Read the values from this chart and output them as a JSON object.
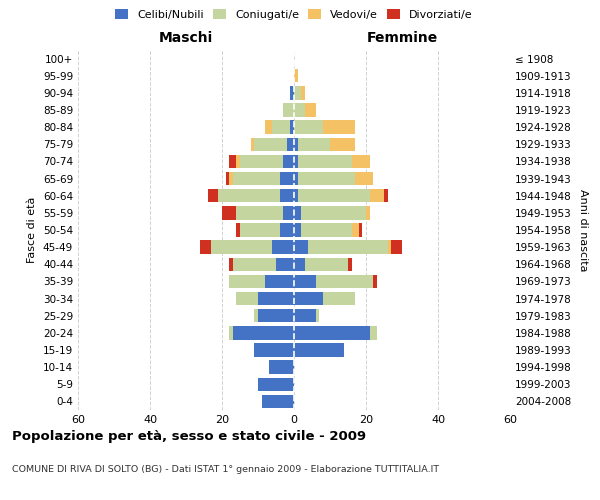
{
  "age_groups": [
    "0-4",
    "5-9",
    "10-14",
    "15-19",
    "20-24",
    "25-29",
    "30-34",
    "35-39",
    "40-44",
    "45-49",
    "50-54",
    "55-59",
    "60-64",
    "65-69",
    "70-74",
    "75-79",
    "80-84",
    "85-89",
    "90-94",
    "95-99",
    "100+"
  ],
  "birth_years": [
    "2004-2008",
    "1999-2003",
    "1994-1998",
    "1989-1993",
    "1984-1988",
    "1979-1983",
    "1974-1978",
    "1969-1973",
    "1964-1968",
    "1959-1963",
    "1954-1958",
    "1949-1953",
    "1944-1948",
    "1939-1943",
    "1934-1938",
    "1929-1933",
    "1924-1928",
    "1919-1923",
    "1914-1918",
    "1909-1913",
    "≤ 1908"
  ],
  "colors": {
    "celibi": "#4472C4",
    "coniugati": "#C5D5A0",
    "vedovi": "#F5C165",
    "divorziati": "#D03020"
  },
  "maschi": {
    "celibi": [
      9,
      10,
      7,
      11,
      17,
      10,
      10,
      8,
      5,
      6,
      4,
      3,
      4,
      4,
      3,
      2,
      1,
      0,
      1,
      0,
      0
    ],
    "coniugati": [
      0,
      0,
      0,
      0,
      1,
      1,
      6,
      10,
      12,
      17,
      11,
      13,
      17,
      13,
      12,
      9,
      5,
      3,
      0,
      0,
      0
    ],
    "vedovi": [
      0,
      0,
      0,
      0,
      0,
      0,
      0,
      0,
      0,
      0,
      0,
      0,
      0,
      1,
      1,
      1,
      2,
      0,
      0,
      0,
      0
    ],
    "divorziati": [
      0,
      0,
      0,
      0,
      0,
      0,
      0,
      0,
      1,
      3,
      1,
      4,
      3,
      1,
      2,
      0,
      0,
      0,
      0,
      0,
      0
    ]
  },
  "femmine": {
    "celibi": [
      0,
      0,
      0,
      14,
      21,
      6,
      8,
      6,
      3,
      4,
      2,
      2,
      1,
      1,
      1,
      1,
      0,
      0,
      0,
      0,
      0
    ],
    "coniugati": [
      0,
      0,
      0,
      0,
      2,
      1,
      9,
      16,
      12,
      22,
      14,
      18,
      20,
      16,
      15,
      9,
      8,
      3,
      2,
      0,
      0
    ],
    "vedovi": [
      0,
      0,
      0,
      0,
      0,
      0,
      0,
      0,
      0,
      1,
      2,
      1,
      4,
      5,
      5,
      7,
      9,
      3,
      1,
      1,
      0
    ],
    "divorziati": [
      0,
      0,
      0,
      0,
      0,
      0,
      0,
      1,
      1,
      3,
      1,
      0,
      1,
      0,
      0,
      0,
      0,
      0,
      0,
      0,
      0
    ]
  },
  "title": "Popolazione per età, sesso e stato civile - 2009",
  "subtitle": "COMUNE DI RIVA DI SOLTO (BG) - Dati ISTAT 1° gennaio 2009 - Elaborazione TUTTITALIA.IT",
  "xlabel_left": "Maschi",
  "xlabel_right": "Femmine",
  "ylabel_left": "Fasce di età",
  "ylabel_right": "Anni di nascita",
  "xlim": 60,
  "background_color": "#FFFFFF",
  "grid_color": "#CCCCCC",
  "legend_labels": [
    "Celibi/Nubili",
    "Coniugati/e",
    "Vedovi/e",
    "Divorziati/e"
  ]
}
